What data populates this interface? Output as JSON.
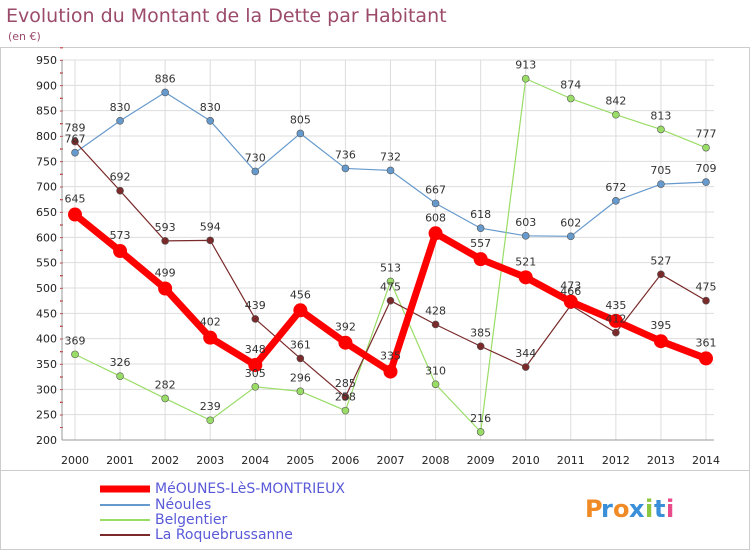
{
  "chart_data": {
    "type": "line",
    "title": "Evolution du Montant de la Dette par Habitant",
    "subtitle": "(en €)",
    "x": [
      "2000",
      "2001",
      "2002",
      "2003",
      "2004",
      "2005",
      "2006",
      "2007",
      "2008",
      "2009",
      "2010",
      "2011",
      "2012",
      "2013",
      "2014"
    ],
    "ylim": [
      200,
      950
    ],
    "yticks": [
      200,
      250,
      300,
      350,
      400,
      450,
      500,
      550,
      600,
      650,
      700,
      750,
      800,
      850,
      900,
      950
    ],
    "grid": true,
    "series": [
      {
        "name": "MéOUNES-LèS-MONTRIEUX",
        "color": "#ff0000",
        "values": [
          645,
          573,
          499,
          402,
          348,
          456,
          392,
          335,
          608,
          557,
          521,
          473,
          435,
          395,
          361
        ]
      },
      {
        "name": "Néoules",
        "color": "#6699cc",
        "values": [
          767,
          830,
          886,
          830,
          730,
          805,
          736,
          732,
          667,
          618,
          603,
          602,
          672,
          705,
          709
        ]
      },
      {
        "name": "Belgentier",
        "color": "#99dd66",
        "values": [
          369,
          326,
          282,
          239,
          305,
          296,
          258,
          513,
          310,
          216,
          913,
          874,
          842,
          813,
          777
        ]
      },
      {
        "name": "La Roquebrussanne",
        "color": "#7a2a2a",
        "values": [
          789,
          692,
          593,
          594,
          439,
          361,
          285,
          475,
          428,
          385,
          344,
          466,
          412,
          527,
          475
        ]
      }
    ]
  },
  "brand": {
    "text": "Proxiti",
    "letters": [
      "P",
      "r",
      "o",
      "x",
      "i",
      "t",
      "i"
    ]
  }
}
